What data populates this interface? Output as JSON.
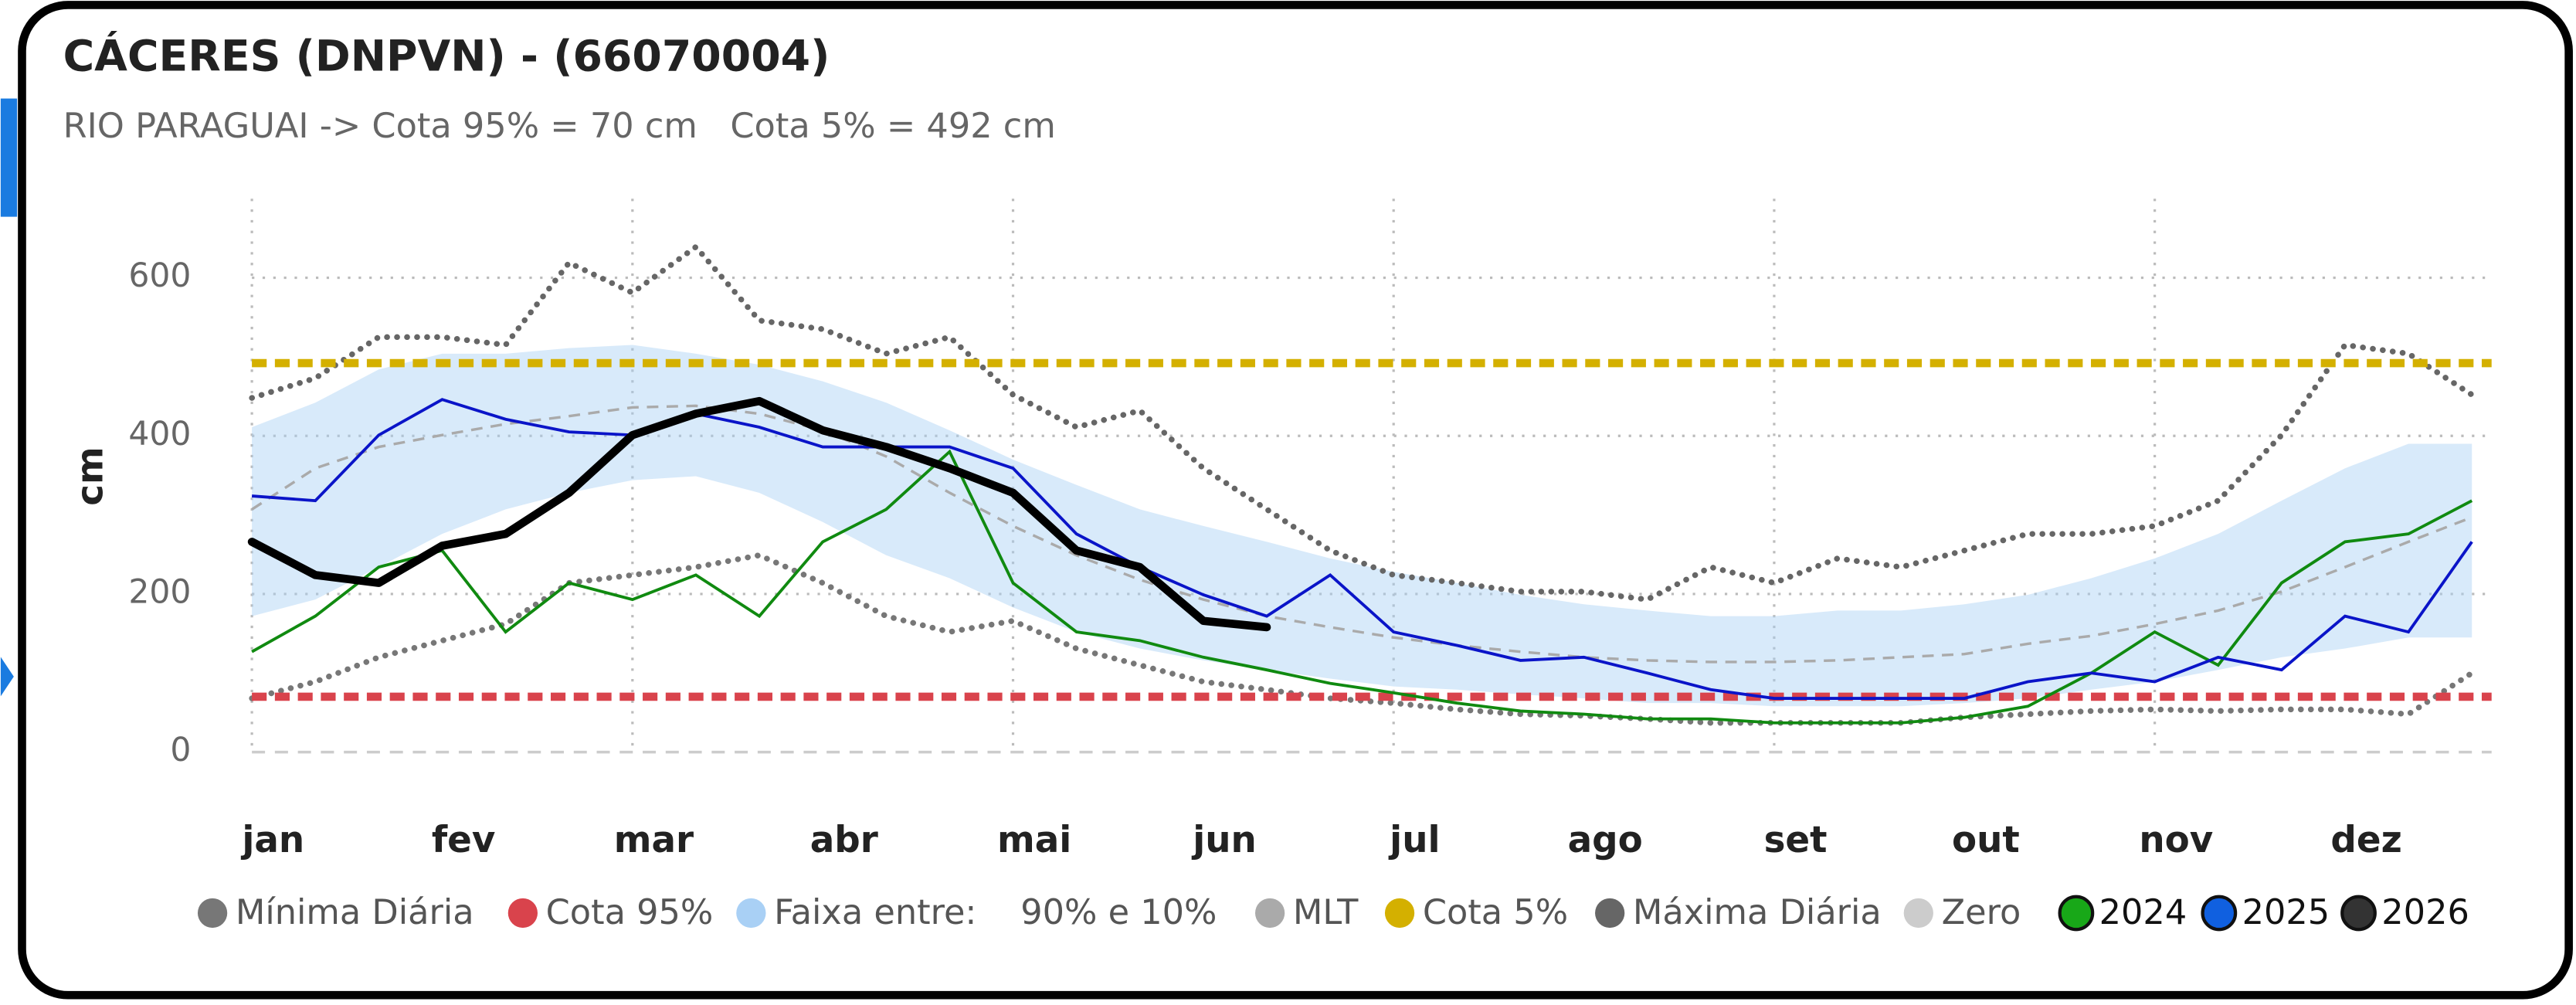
{
  "chart_data": {
    "type": "line",
    "title": "CÁCERES (DNPVN) - (66070004)",
    "subtitle": "RIO PARAGUAI -> Cota 95% = 70 cm   Cota 5% = 492 cm",
    "y_label": "cm",
    "categories": [
      "jan",
      null,
      null,
      "fev",
      null,
      null,
      "mar",
      null,
      null,
      "abr",
      null,
      null,
      "mai",
      null,
      null,
      "jun",
      null,
      null,
      "jul",
      null,
      null,
      "ago",
      null,
      null,
      "set",
      null,
      null,
      "out",
      null,
      null,
      "nov",
      null,
      null,
      "dez",
      null,
      null
    ],
    "ylim": [
      0,
      700
    ],
    "yticks": [
      0,
      200,
      400,
      600
    ],
    "grid": true,
    "series": [
      {
        "name": "Mínima Diária",
        "color": "#777777",
        "style": "dotted",
        "values": [
          68,
          89,
          120,
          141,
          162,
          214,
          224,
          234,
          249,
          214,
          172,
          152,
          166,
          131,
          110,
          89,
          79,
          68,
          62,
          54,
          48,
          46,
          42,
          37,
          37,
          37,
          37,
          44,
          48,
          52,
          54,
          52,
          54,
          54,
          48,
          100
        ]
      },
      {
        "name": "Cota 95%",
        "color": "#d9434c",
        "style": "dashed",
        "value": 70
      },
      {
        "name": "Faixa entre:    90% e 10%",
        "color": "#a9d0f5",
        "style": "band",
        "upper": [
          411,
          442,
          484,
          504,
          504,
          511,
          515,
          504,
          490,
          469,
          442,
          407,
          370,
          338,
          307,
          286,
          266,
          245,
          228,
          214,
          199,
          187,
          179,
          172,
          172,
          179,
          179,
          187,
          199,
          220,
          245,
          276,
          318,
          359,
          390,
          390
        ],
        "lower": [
          172,
          193,
          234,
          276,
          307,
          328,
          344,
          349,
          328,
          291,
          249,
          220,
          183,
          152,
          131,
          116,
          104,
          93,
          83,
          79,
          73,
          68,
          62,
          62,
          58,
          58,
          58,
          62,
          68,
          79,
          89,
          104,
          120,
          131,
          145,
          145
        ]
      },
      {
        "name": "MLT",
        "color": "#aaaaaa",
        "style": "dashed-thin",
        "values": [
          307,
          359,
          386,
          401,
          415,
          425,
          436,
          438,
          428,
          407,
          374,
          328,
          286,
          249,
          218,
          193,
          172,
          158,
          145,
          135,
          127,
          120,
          116,
          114,
          114,
          116,
          120,
          124,
          137,
          147,
          162,
          179,
          203,
          234,
          266,
          297
        ]
      },
      {
        "name": "Cota 5%",
        "color": "#d4b000",
        "style": "dashed",
        "value": 492
      },
      {
        "name": "Máxima Diária",
        "color": "#666666",
        "style": "dotted",
        "values": [
          448,
          473,
          525,
          525,
          515,
          619,
          581,
          639,
          546,
          535,
          504,
          525,
          452,
          411,
          432,
          359,
          307,
          255,
          224,
          214,
          203,
          203,
          193,
          234,
          214,
          245,
          234,
          255,
          276,
          276,
          286,
          318,
          401,
          515,
          504,
          452
        ]
      },
      {
        "name": "Zero",
        "color": "#cccccc",
        "style": "dashed-zero",
        "value": 0
      },
      {
        "name": "2024",
        "color": "#18a818",
        "line_color": "#108a10",
        "style": "solid",
        "values": [
          127,
          172,
          234,
          255,
          152,
          214,
          193,
          224,
          172,
          266,
          307,
          380,
          214,
          152,
          141,
          120,
          104,
          87,
          75,
          62,
          52,
          48,
          42,
          42,
          37,
          37,
          37,
          44,
          58,
          100,
          152,
          110,
          214,
          266,
          276,
          318
        ]
      },
      {
        "name": "2025",
        "color": "#1060e0",
        "line_color": "#0a14c8",
        "style": "solid",
        "values": [
          324,
          318,
          401,
          446,
          421,
          405,
          401,
          428,
          411,
          386,
          386,
          386,
          359,
          276,
          234,
          199,
          172,
          224,
          152,
          135,
          116,
          120,
          100,
          79,
          68,
          68,
          68,
          68,
          89,
          100,
          89,
          120,
          104,
          172,
          152,
          266
        ]
      },
      {
        "name": "2026",
        "color": "#333333",
        "line_color": "#000000",
        "style": "thick",
        "values": [
          266,
          224,
          214,
          261,
          276,
          328,
          401,
          428,
          444,
          407,
          386,
          359,
          328,
          255,
          234,
          166,
          158,
          null,
          null,
          null,
          null,
          null,
          null,
          null,
          null,
          null,
          null,
          null,
          null,
          null,
          null,
          null,
          null,
          null,
          null,
          null
        ]
      }
    ]
  }
}
